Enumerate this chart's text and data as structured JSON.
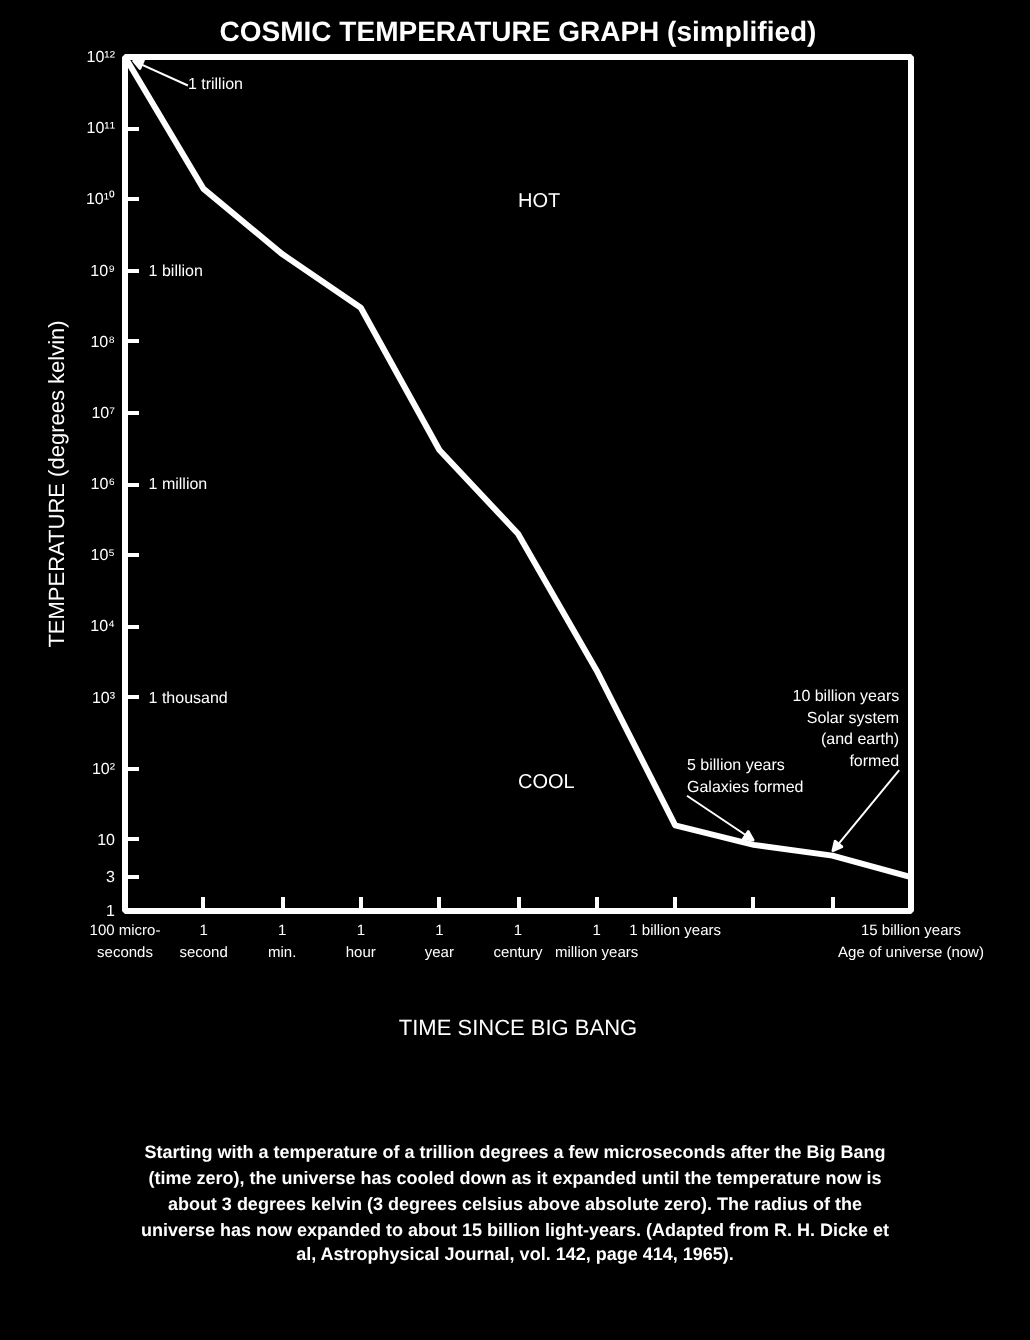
{
  "chart_data": {
    "type": "line",
    "title": "COSMIC TEMPERATURE GRAPH (simplified)",
    "xlabel": "TIME SINCE BIG BANG",
    "ylabel": "TEMPERATURE (degrees kelvin)",
    "log": "y",
    "grid": false,
    "categories": [
      "100 micro-\nseconds",
      "1\nsecond",
      "1\nmin.",
      "1\nhour",
      "1\nyear",
      "1\ncentury",
      "1\nmillion years",
      "1 billion years",
      null,
      null,
      "15 billion years\nAge of universe (now)"
    ],
    "ylim": [
      1,
      1000000000000.0
    ],
    "yticks": [
      1,
      3,
      10,
      {
        "value": 100,
        "label": "10²"
      },
      {
        "value": 1000,
        "label": "10³"
      },
      {
        "value": 10000,
        "label": "10⁴"
      },
      {
        "value": 100000,
        "label": "10⁵"
      },
      {
        "value": 1000000,
        "label": "10⁶"
      },
      {
        "value": 10000000,
        "label": "10⁷"
      },
      {
        "value": 100000000,
        "label": "10⁸"
      },
      {
        "value": 1000000000,
        "label": "10⁹"
      },
      {
        "value": 10000000000,
        "label": "10¹⁰"
      },
      {
        "value": 100000000000,
        "label": "10¹¹"
      },
      {
        "value": 1000000000000,
        "label": "10¹²"
      }
    ],
    "series": [
      {
        "color": "#ffffff",
        "values": [
          1000000000000,
          14000000000,
          1700000000,
          300000000,
          3000000,
          200000,
          2400,
          16,
          8.5,
          6,
          3
        ]
      }
    ],
    "annotations": [
      {
        "text": "1 trillion",
        "x": "100 micro-\nseconds",
        "y": 1000000000000
      },
      "1 billion",
      "1 million",
      "1 thousand",
      "HOT",
      "COOL",
      {
        "text": "10 billion years\nSolar system\n(and earth)\nformed",
        "y": 6
      },
      {
        "text": "5 billion years\nGalaxies formed",
        "y": 8.5
      },
      "Starting with a temperature of a trillion degrees a few microseconds after the Big Bang (time zero), the universe has cooled down as it expanded until the temperature now is about 3 degrees kelvin (3 degrees celsius above absolute zero). The radius of the universe has now expanded to about 15 billion light-years. (Adapted from R. H. Dicke et al, Astrophysical Journal, vol. 142, page 414, 1965)."
    ]
  }
}
